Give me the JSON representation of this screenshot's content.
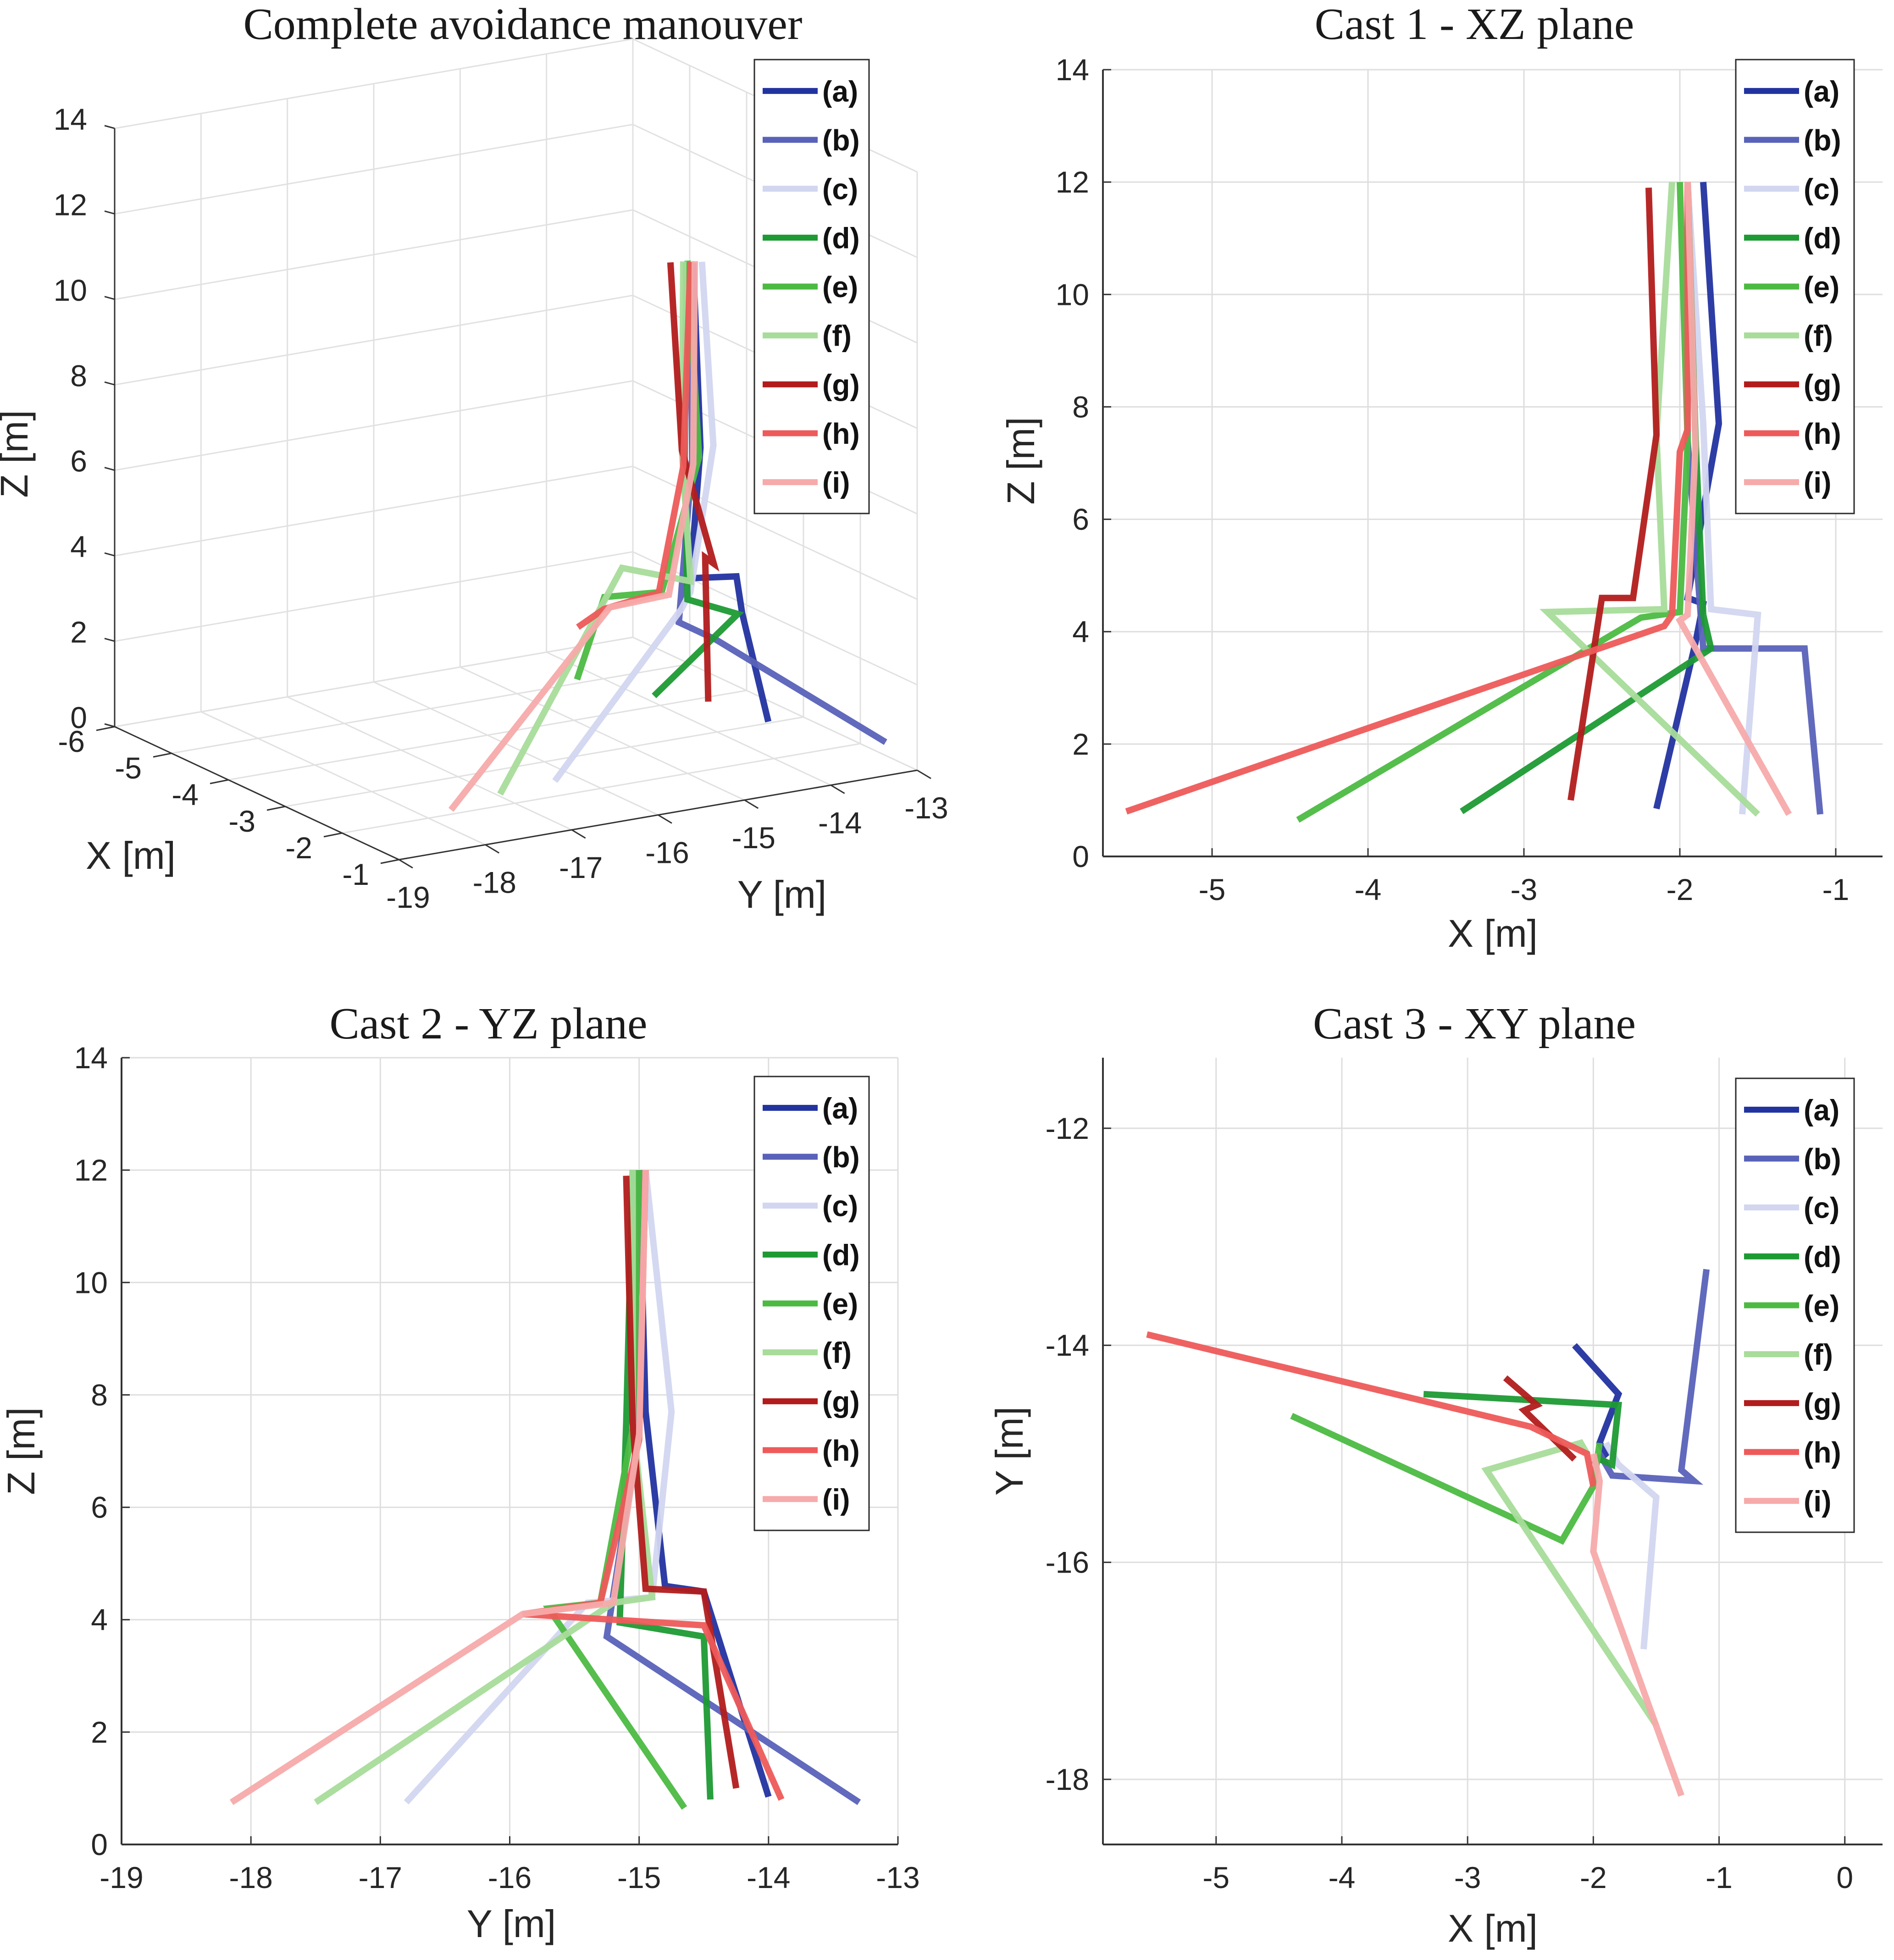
{
  "legend_entries": [
    {
      "key": "a",
      "label": "(a)",
      "color": "#2233a0"
    },
    {
      "key": "b",
      "label": "(b)",
      "color": "#5862b8"
    },
    {
      "key": "c",
      "label": "(c)",
      "color": "#d2d6f0"
    },
    {
      "key": "d",
      "label": "(d)",
      "color": "#1e9a34"
    },
    {
      "key": "e",
      "label": "(e)",
      "color": "#4cba42"
    },
    {
      "key": "f",
      "label": "(f)",
      "color": "#a8dc9a"
    },
    {
      "key": "g",
      "label": "(g)",
      "color": "#b21c1c"
    },
    {
      "key": "h",
      "label": "(h)",
      "color": "#ee5a5a"
    },
    {
      "key": "i",
      "label": "(i)",
      "color": "#f7aaaa"
    }
  ],
  "chart_data": [
    {
      "id": "p3d",
      "type": "line",
      "title": "Complete avoidance manouver",
      "xlabel": "X [m]",
      "ylabel": "Y [m]",
      "zlabel": "Z [m]",
      "xlim": [
        -6,
        -1
      ],
      "ylim": [
        -19,
        -13
      ],
      "zlim": [
        0,
        14
      ],
      "x_ticks": [
        "-6",
        "-5",
        "-4",
        "-3",
        "-2",
        "-1"
      ],
      "y_ticks": [
        "-19",
        "-18",
        "-17",
        "-16",
        "-15",
        "-14",
        "-13"
      ],
      "z_ticks": [
        "0",
        "2",
        "4",
        "6",
        "8",
        "10",
        "12",
        "14"
      ],
      "grid": true,
      "legend_position": "top-right",
      "series": [
        {
          "name": "(a)",
          "points": [
            [
              -2.1,
              -14,
              0.8
            ],
            [
              -1.8,
              -14.5,
              3.7
            ],
            [
              -1.9,
              -14.5,
              4.5
            ],
            [
              -1.95,
              -15,
              4.6
            ],
            [
              -1.85,
              -14.95,
              7.7
            ],
            [
              -1.9,
              -15,
              12
            ]
          ]
        },
        {
          "name": "(b)",
          "points": [
            [
              -1.1,
              -13.3,
              0.7
            ],
            [
              -1.2,
              -15.2,
              3.7
            ],
            [
              -1.85,
              -15.2,
              3.7
            ],
            [
              -1.92,
              -15,
              7.4
            ],
            [
              -1.95,
              -15,
              12
            ]
          ]
        },
        {
          "name": "(c)",
          "points": [
            [
              -1.6,
              -16.8,
              0.7
            ],
            [
              -1.5,
              -15.4,
              4.3
            ],
            [
              -1.8,
              -15.1,
              4.4
            ],
            [
              -1.85,
              -14.8,
              7.7
            ],
            [
              -1.9,
              -14.9,
              12
            ]
          ]
        },
        {
          "name": "(d)",
          "points": [
            [
              -3.35,
              -14.5,
              0.8
            ],
            [
              -1.8,
              -14.55,
              3.7
            ],
            [
              -1.85,
              -15.1,
              4.2
            ],
            [
              -1.9,
              -15.1,
              7.5
            ],
            [
              -1.95,
              -15.05,
              12
            ]
          ]
        },
        {
          "name": "(e)",
          "points": [
            [
              -4.4,
              -14.7,
              0.6
            ],
            [
              -2.25,
              -15.8,
              4.25
            ],
            [
              -2,
              -15.3,
              4.35
            ],
            [
              -1.95,
              -14.9,
              7.4
            ],
            [
              -2,
              -15,
              12
            ]
          ]
        },
        {
          "name": "(f)",
          "points": [
            [
              -1.5,
              -17.5,
              0.7
            ],
            [
              -2.85,
              -15.2,
              4.35
            ],
            [
              -2.1,
              -14.9,
              4.4
            ],
            [
              -2.1,
              -15,
              7.5
            ],
            [
              -2,
              -15.05,
              12
            ]
          ]
        },
        {
          "name": "(g)",
          "points": [
            [
              -2.7,
              -14.3,
              1.0
            ],
            [
              -2.45,
              -14.5,
              4.6
            ],
            [
              -2.3,
              -14.5,
              4.55
            ],
            [
              -2.1,
              -15,
              7.5
            ],
            [
              -2.15,
              -15.1,
              11.9
            ]
          ]
        },
        {
          "name": "(h)",
          "points": [
            [
              -5.6,
              -13.9,
              0.8
            ],
            [
              -2.1,
              -15.9,
              4.1
            ],
            [
              -2.05,
              -15.3,
              4.3
            ],
            [
              -2.0,
              -15.05,
              7.2
            ],
            [
              -1.95,
              -15,
              12
            ]
          ]
        },
        {
          "name": "(i)",
          "points": [
            [
              -1.3,
              -18.2,
              0.7
            ],
            [
              -2.0,
              -15.9,
              4.2
            ],
            [
              -1.95,
              -15.25,
              4.3
            ],
            [
              -1.9,
              -15,
              7.3
            ],
            [
              -1.95,
              -14.95,
              12
            ]
          ]
        }
      ]
    },
    {
      "id": "pxz",
      "type": "line",
      "title": "Cast 1 - XZ plane",
      "xlabel": "X [m]",
      "ylabel": "Z [m]",
      "xlim": [
        -5.7,
        -0.7
      ],
      "ylim": [
        0,
        14
      ],
      "x_ticks": [
        "-5",
        "-4",
        "-3",
        "-2",
        "-1"
      ],
      "y_ticks": [
        "0",
        "2",
        "4",
        "6",
        "8",
        "10",
        "12",
        "14"
      ],
      "grid": true,
      "legend_position": "top-right",
      "series": [
        {
          "name": "(a)",
          "points": [
            [
              -2.15,
              0.85
            ],
            [
              -1.9,
              3.8
            ],
            [
              -1.85,
              4.5
            ],
            [
              -1.95,
              4.6
            ],
            [
              -1.75,
              7.7
            ],
            [
              -1.85,
              12
            ]
          ]
        },
        {
          "name": "(b)",
          "points": [
            [
              -1.1,
              0.75
            ],
            [
              -1.2,
              3.7
            ],
            [
              -1.85,
              3.7
            ],
            [
              -1.95,
              7.4
            ],
            [
              -1.95,
              12
            ]
          ]
        },
        {
          "name": "(c)",
          "points": [
            [
              -1.6,
              0.75
            ],
            [
              -1.5,
              4.3
            ],
            [
              -1.8,
              4.4
            ],
            [
              -1.85,
              7.7
            ],
            [
              -1.95,
              12
            ]
          ]
        },
        {
          "name": "(d)",
          "points": [
            [
              -3.4,
              0.8
            ],
            [
              -1.8,
              3.7
            ],
            [
              -1.85,
              4.3
            ],
            [
              -1.9,
              7.5
            ],
            [
              -1.95,
              12
            ]
          ]
        },
        {
          "name": "(e)",
          "points": [
            [
              -4.45,
              0.65
            ],
            [
              -2.25,
              4.25
            ],
            [
              -2.0,
              4.35
            ],
            [
              -1.95,
              7.4
            ],
            [
              -2.0,
              12
            ]
          ]
        },
        {
          "name": "(f)",
          "points": [
            [
              -1.5,
              0.75
            ],
            [
              -2.85,
              4.35
            ],
            [
              -2.1,
              4.4
            ],
            [
              -2.15,
              7.5
            ],
            [
              -2.05,
              12
            ]
          ]
        },
        {
          "name": "(g)",
          "points": [
            [
              -2.7,
              1.0
            ],
            [
              -2.5,
              4.6
            ],
            [
              -2.3,
              4.6
            ],
            [
              -2.15,
              7.5
            ],
            [
              -2.2,
              11.9
            ]
          ]
        },
        {
          "name": "(h)",
          "points": [
            [
              -5.55,
              0.8
            ],
            [
              -2.1,
              4.1
            ],
            [
              -2.05,
              4.3
            ],
            [
              -2.0,
              7.2
            ],
            [
              -1.95,
              7.6
            ],
            [
              -1.95,
              12
            ]
          ]
        },
        {
          "name": "(i)",
          "points": [
            [
              -1.3,
              0.75
            ],
            [
              -2.0,
              4.2
            ],
            [
              -1.95,
              4.3
            ],
            [
              -1.9,
              7.3
            ],
            [
              -1.95,
              12
            ]
          ]
        }
      ]
    },
    {
      "id": "pyz",
      "type": "line",
      "title": "Cast 2 - YZ plane",
      "xlabel": "Y [m]",
      "ylabel": "Z [m]",
      "xlim": [
        -19,
        -13
      ],
      "ylim": [
        0,
        14
      ],
      "x_ticks": [
        "-19",
        "-18",
        "-17",
        "-16",
        "-15",
        "-14",
        "-13"
      ],
      "y_ticks": [
        "0",
        "2",
        "4",
        "6",
        "8",
        "10",
        "12",
        "14"
      ],
      "grid": true,
      "legend_position": "top-right",
      "series": [
        {
          "name": "(a)",
          "points": [
            [
              -14.0,
              0.85
            ],
            [
              -14.5,
              4.5
            ],
            [
              -14.8,
              4.6
            ],
            [
              -14.95,
              7.7
            ],
            [
              -15.0,
              12
            ]
          ]
        },
        {
          "name": "(b)",
          "points": [
            [
              -13.3,
              0.75
            ],
            [
              -15.25,
              3.7
            ],
            [
              -15.0,
              7.4
            ],
            [
              -15.05,
              12
            ]
          ]
        },
        {
          "name": "(c)",
          "points": [
            [
              -16.8,
              0.75
            ],
            [
              -15.4,
              4.3
            ],
            [
              -14.9,
              4.4
            ],
            [
              -14.75,
              7.7
            ],
            [
              -14.95,
              12
            ]
          ]
        },
        {
          "name": "(d)",
          "points": [
            [
              -14.45,
              0.8
            ],
            [
              -14.5,
              3.7
            ],
            [
              -15.15,
              3.95
            ],
            [
              -15.1,
              7.5
            ],
            [
              -15.05,
              12
            ]
          ]
        },
        {
          "name": "(e)",
          "points": [
            [
              -14.65,
              0.65
            ],
            [
              -15.7,
              4.2
            ],
            [
              -15.3,
              4.3
            ],
            [
              -15.05,
              7.4
            ],
            [
              -15.0,
              12
            ]
          ]
        },
        {
          "name": "(f)",
          "points": [
            [
              -17.5,
              0.75
            ],
            [
              -15.2,
              4.3
            ],
            [
              -14.9,
              4.4
            ],
            [
              -15.05,
              7.5
            ],
            [
              -15.05,
              12
            ]
          ]
        },
        {
          "name": "(g)",
          "points": [
            [
              -14.25,
              1.0
            ],
            [
              -14.5,
              4.5
            ],
            [
              -14.95,
              4.55
            ],
            [
              -15.05,
              7.5
            ],
            [
              -15.1,
              11.9
            ]
          ]
        },
        {
          "name": "(h)",
          "points": [
            [
              -13.9,
              0.8
            ],
            [
              -14.5,
              3.9
            ],
            [
              -15.9,
              4.1
            ],
            [
              -15.3,
              4.3
            ],
            [
              -15.0,
              7.2
            ],
            [
              -14.95,
              12
            ]
          ]
        },
        {
          "name": "(i)",
          "points": [
            [
              -18.15,
              0.75
            ],
            [
              -15.9,
              4.1
            ],
            [
              -15.2,
              4.3
            ],
            [
              -15.0,
              7.3
            ],
            [
              -14.95,
              12
            ]
          ]
        }
      ]
    },
    {
      "id": "pxy",
      "type": "line",
      "title": "Cast 3 - XY plane",
      "xlabel": "X [m]",
      "ylabel": "Y [m]",
      "xlim": [
        -5.9,
        0.3
      ],
      "ylim": [
        -18.6,
        -11.35
      ],
      "x_ticks": [
        "-5",
        "-4",
        "-3",
        "-2",
        "-1",
        "0"
      ],
      "y_ticks": [
        "-18",
        "-16",
        "-14",
        "-12"
      ],
      "grid": true,
      "legend_position": "top-right",
      "series": [
        {
          "name": "(a)",
          "points": [
            [
              -2.15,
              -14.0
            ],
            [
              -1.8,
              -14.45
            ],
            [
              -1.95,
              -14.9
            ],
            [
              -1.9,
              -15.0
            ],
            [
              -2.0,
              -15.1
            ]
          ]
        },
        {
          "name": "(b)",
          "points": [
            [
              -1.1,
              -13.3
            ],
            [
              -1.3,
              -15.15
            ],
            [
              -1.2,
              -15.25
            ],
            [
              -1.85,
              -15.2
            ],
            [
              -1.95,
              -15.0
            ]
          ]
        },
        {
          "name": "(c)",
          "points": [
            [
              -1.6,
              -16.8
            ],
            [
              -1.5,
              -15.4
            ],
            [
              -1.8,
              -15.1
            ],
            [
              -1.9,
              -14.9
            ]
          ]
        },
        {
          "name": "(d)",
          "points": [
            [
              -3.35,
              -14.45
            ],
            [
              -1.8,
              -14.55
            ],
            [
              -1.85,
              -15.1
            ],
            [
              -1.95,
              -15.05
            ]
          ]
        },
        {
          "name": "(e)",
          "points": [
            [
              -4.4,
              -14.65
            ],
            [
              -2.25,
              -15.8
            ],
            [
              -2.0,
              -15.3
            ],
            [
              -1.95,
              -14.9
            ]
          ]
        },
        {
          "name": "(f)",
          "points": [
            [
              -1.5,
              -17.5
            ],
            [
              -2.85,
              -15.15
            ],
            [
              -2.1,
              -14.9
            ],
            [
              -2.05,
              -15.0
            ]
          ]
        },
        {
          "name": "(g)",
          "points": [
            [
              -2.7,
              -14.3
            ],
            [
              -2.45,
              -14.55
            ],
            [
              -2.55,
              -14.6
            ],
            [
              -2.15,
              -15.05
            ]
          ]
        },
        {
          "name": "(h)",
          "points": [
            [
              -5.55,
              -13.9
            ],
            [
              -2.5,
              -14.75
            ],
            [
              -2.05,
              -15.0
            ],
            [
              -2.0,
              -15.3
            ]
          ]
        },
        {
          "name": "(i)",
          "points": [
            [
              -1.3,
              -18.15
            ],
            [
              -2.0,
              -15.9
            ],
            [
              -1.95,
              -15.25
            ],
            [
              -2.0,
              -15.0
            ]
          ]
        }
      ]
    }
  ]
}
